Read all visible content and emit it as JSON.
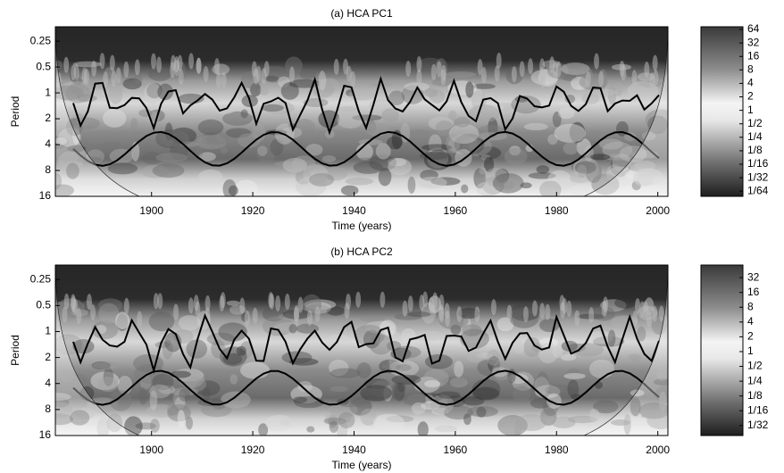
{
  "chart_data": [
    {
      "type": "wavelet",
      "title": "(a) HCA PC1",
      "xlabel": "Time (years)",
      "ylabel": "Period",
      "xlim": [
        1881,
        2002
      ],
      "xticks": [
        1900,
        1920,
        1940,
        1960,
        1980,
        2000
      ],
      "ylim": [
        0.17,
        16
      ],
      "yticks": [
        0.25,
        0.5,
        1,
        2,
        4,
        8,
        16
      ],
      "ylog": true,
      "yinvert": true,
      "colorbar": {
        "clim": [
          0.012,
          73.5
        ],
        "ticks": [
          64,
          32,
          16,
          8,
          4,
          2,
          1,
          {
            "value": 0.5,
            "label": "1/2"
          },
          {
            "value": 0.25,
            "label": "1/4"
          },
          {
            "value": 0.125,
            "label": "1/8"
          },
          {
            "value": 0.0625,
            "label": "1/16"
          },
          {
            "value": 0.03125,
            "label": "1/32"
          },
          {
            "value": 0.015625,
            "label": "1/64"
          }
        ]
      }
    },
    {
      "type": "wavelet",
      "title": "(b) HCA PC2",
      "xlabel": "Time (years)",
      "ylabel": "Period",
      "xlim": [
        1881,
        2002
      ],
      "xticks": [
        1900,
        1920,
        1940,
        1960,
        1980,
        2000
      ],
      "ylim": [
        0.17,
        16
      ],
      "yticks": [
        0.25,
        0.5,
        1,
        2,
        4,
        8,
        16
      ],
      "ylog": true,
      "yinvert": true,
      "colorbar": {
        "clim": [
          0.0196,
          57.7
        ],
        "ticks": [
          32,
          16,
          8,
          4,
          2,
          1,
          {
            "value": 0.5,
            "label": "1/2"
          },
          {
            "value": 0.25,
            "label": "1/4"
          },
          {
            "value": 0.125,
            "label": "1/8"
          },
          {
            "value": 0.0625,
            "label": "1/16"
          },
          {
            "value": 0.03125,
            "label": "1/32"
          }
        ]
      }
    }
  ]
}
